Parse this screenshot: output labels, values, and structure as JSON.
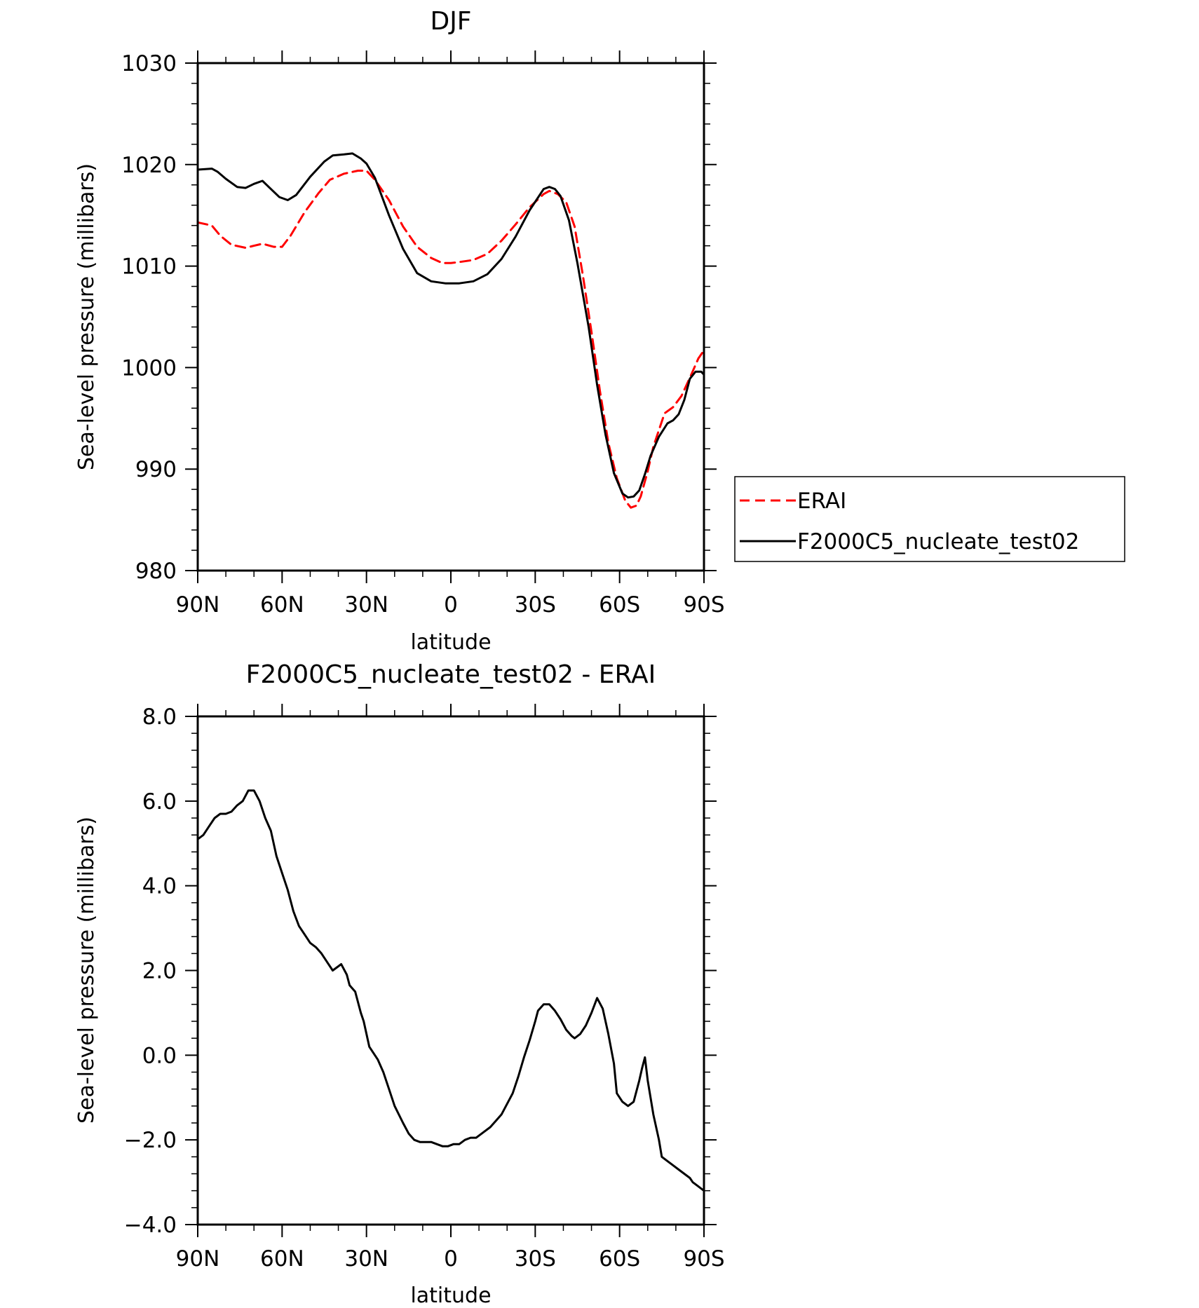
{
  "chart_data": [
    {
      "type": "line",
      "title": "DJF",
      "xlabel": "latitude",
      "ylabel": "Sea-level pressure (millibars)",
      "xlim": [
        90,
        -90
      ],
      "ylim": [
        980,
        1030
      ],
      "x_ticks": [
        {
          "value": 90,
          "label": "90N"
        },
        {
          "value": 60,
          "label": "60N"
        },
        {
          "value": 30,
          "label": "30N"
        },
        {
          "value": 0,
          "label": "0"
        },
        {
          "value": -30,
          "label": "30S"
        },
        {
          "value": -60,
          "label": "60S"
        },
        {
          "value": -90,
          "label": "90S"
        }
      ],
      "y_ticks": [
        {
          "value": 1030,
          "label": "1030"
        },
        {
          "value": 1020,
          "label": "1020"
        },
        {
          "value": 1010,
          "label": "1010"
        },
        {
          "value": 1000,
          "label": "1000"
        },
        {
          "value": 990,
          "label": "990"
        },
        {
          "value": 980,
          "label": "980"
        }
      ],
      "legend": {
        "position": "right"
      },
      "series": [
        {
          "name": "ERAI",
          "color": "#ff0000",
          "dash": "dashed",
          "x": [
            90,
            85,
            82,
            78,
            73,
            70,
            67,
            63,
            60,
            57,
            52,
            47,
            43,
            38,
            33,
            30,
            27,
            22,
            17,
            12,
            7,
            3,
            0,
            -3,
            -8,
            -13,
            -18,
            -23,
            -28,
            -33,
            -35,
            -38,
            -41,
            -44,
            -47,
            -50,
            -53,
            -56,
            -59,
            -62,
            -64,
            -66,
            -67.5,
            -70,
            -72,
            -76,
            -79,
            -82,
            -85,
            -88,
            -90
          ],
          "y": [
            1014.3,
            1014.0,
            1013.0,
            1012.1,
            1011.8,
            1012.0,
            1012.2,
            1011.9,
            1011.9,
            1013.0,
            1015.3,
            1017.2,
            1018.5,
            1019.1,
            1019.4,
            1019.4,
            1018.5,
            1016.5,
            1013.9,
            1011.9,
            1010.8,
            1010.3,
            1010.3,
            1010.4,
            1010.6,
            1011.2,
            1012.5,
            1014.1,
            1015.8,
            1017.1,
            1017.4,
            1017.1,
            1016.3,
            1013.9,
            1009.0,
            1003.5,
            997.7,
            992.6,
            989.1,
            986.9,
            986.2,
            986.4,
            987.3,
            989.8,
            992.2,
            995.5,
            996.1,
            997.2,
            999.0,
            1000.9,
            1001.7
          ]
        },
        {
          "name": "F2000C5_nucleate_test02",
          "color": "#000000",
          "dash": "solid",
          "x": [
            90,
            85,
            83,
            80,
            76,
            73,
            70,
            67,
            64,
            61,
            58,
            55,
            50,
            45,
            42,
            38,
            35,
            32,
            30,
            27,
            22,
            17,
            12,
            7,
            2,
            0,
            -3,
            -8,
            -13,
            -18,
            -23,
            -28,
            -33,
            -35,
            -37,
            -39,
            -42,
            -45,
            -49,
            -52,
            -55,
            -58,
            -61,
            -63,
            -65,
            -67,
            -69,
            -71,
            -74,
            -77,
            -79,
            -81,
            -83,
            -85,
            -87,
            -89,
            -90
          ],
          "y": [
            1019.5,
            1019.6,
            1019.3,
            1018.6,
            1017.8,
            1017.7,
            1018.1,
            1018.4,
            1017.6,
            1016.8,
            1016.5,
            1017.0,
            1018.8,
            1020.3,
            1020.9,
            1021.0,
            1021.1,
            1020.6,
            1020.1,
            1018.7,
            1015.0,
            1011.7,
            1009.3,
            1008.5,
            1008.3,
            1008.3,
            1008.3,
            1008.5,
            1009.2,
            1010.7,
            1012.9,
            1015.5,
            1017.6,
            1017.8,
            1017.6,
            1016.9,
            1014.5,
            1010.3,
            1004.0,
            998.3,
            993.4,
            989.6,
            987.6,
            987.2,
            987.3,
            987.9,
            989.5,
            991.3,
            993.2,
            994.5,
            994.8,
            995.4,
            996.8,
            998.9,
            999.6,
            999.6,
            999.3
          ]
        }
      ]
    },
    {
      "type": "line",
      "title": "F2000C5_nucleate_test02 - ERAI",
      "xlabel": "latitude",
      "ylabel": "Sea-level pressure (millibars)",
      "xlim": [
        90,
        -90
      ],
      "ylim": [
        -4.0,
        8.0
      ],
      "x_ticks": [
        {
          "value": 90,
          "label": "90N"
        },
        {
          "value": 60,
          "label": "60N"
        },
        {
          "value": 30,
          "label": "30N"
        },
        {
          "value": 0,
          "label": "0"
        },
        {
          "value": -30,
          "label": "30S"
        },
        {
          "value": -60,
          "label": "60S"
        },
        {
          "value": -90,
          "label": "90S"
        }
      ],
      "y_ticks": [
        {
          "value": 8.0,
          "label": "8.0"
        },
        {
          "value": 6.0,
          "label": "6.0"
        },
        {
          "value": 4.0,
          "label": "4.0"
        },
        {
          "value": 2.0,
          "label": "2.0"
        },
        {
          "value": 0.0,
          "label": "0.0"
        },
        {
          "value": -2.0,
          "label": "−2.0"
        },
        {
          "value": -4.0,
          "label": "−4.0"
        }
      ],
      "series": [
        {
          "color": "#000000",
          "dash": "solid",
          "x": [
            90,
            88,
            86,
            84,
            82,
            80,
            78,
            76,
            74,
            72,
            70,
            68,
            66,
            64,
            62,
            60,
            58,
            56,
            54,
            52,
            50,
            48,
            46,
            44,
            42,
            40,
            39,
            37,
            36,
            34,
            32,
            31,
            29,
            26,
            24,
            22,
            20,
            17,
            15,
            13,
            11,
            9,
            7,
            5,
            3,
            1,
            -1,
            -3,
            -5,
            -7,
            -9,
            -11,
            -12,
            -14,
            -16,
            -18,
            -20,
            -22,
            -24,
            -26,
            -28,
            -30,
            -31,
            -33,
            -35,
            -37,
            -39,
            -41,
            -43,
            -44,
            -46,
            -48,
            -50,
            -52,
            -54,
            -56,
            -58,
            -59,
            -61,
            -63,
            -65,
            -67,
            -68,
            -69,
            -70,
            -72,
            -74,
            -75,
            -77,
            -79,
            -81,
            -83,
            -85,
            -86,
            -88,
            -90
          ],
          "y": [
            5.1,
            5.2,
            5.4,
            5.6,
            5.7,
            5.7,
            5.75,
            5.9,
            6.0,
            6.25,
            6.25,
            6.0,
            5.6,
            5.3,
            4.7,
            4.3,
            3.9,
            3.4,
            3.05,
            2.85,
            2.65,
            2.55,
            2.4,
            2.2,
            2.0,
            2.1,
            2.15,
            1.9,
            1.65,
            1.5,
            1.0,
            0.8,
            0.2,
            -0.1,
            -0.4,
            -0.8,
            -1.2,
            -1.6,
            -1.85,
            -2.0,
            -2.05,
            -2.05,
            -2.05,
            -2.1,
            -2.15,
            -2.15,
            -2.1,
            -2.1,
            -2.0,
            -1.95,
            -1.95,
            -1.85,
            -1.8,
            -1.7,
            -1.55,
            -1.4,
            -1.15,
            -0.9,
            -0.5,
            -0.05,
            0.35,
            0.8,
            1.05,
            1.2,
            1.2,
            1.05,
            0.85,
            0.6,
            0.45,
            0.4,
            0.5,
            0.7,
            1.0,
            1.35,
            1.1,
            0.5,
            -0.2,
            -0.9,
            -1.1,
            -1.2,
            -1.1,
            -0.6,
            -0.3,
            -0.05,
            -0.6,
            -1.4,
            -2.0,
            -2.4,
            -2.5,
            -2.6,
            -2.7,
            -2.8,
            -2.9,
            -3.0,
            -3.1,
            -3.2
          ]
        }
      ]
    }
  ]
}
